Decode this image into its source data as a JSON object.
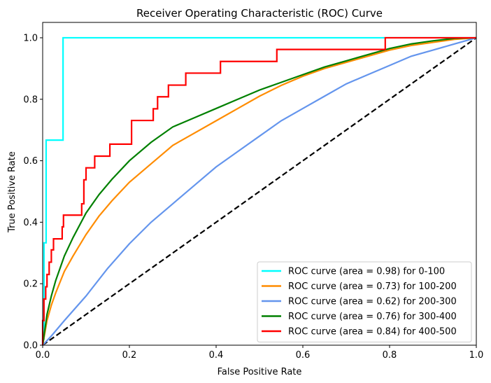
{
  "chart_data": {
    "type": "line",
    "title": "Receiver Operating Characteristic (ROC) Curve",
    "xlabel": "False Positive Rate",
    "ylabel": "True Positive Rate",
    "xlim": [
      0.0,
      1.0
    ],
    "ylim": [
      0.0,
      1.05
    ],
    "xticks": [
      "0.0",
      "0.2",
      "0.4",
      "0.6",
      "0.8",
      "1.0"
    ],
    "yticks": [
      "0.0",
      "0.2",
      "0.4",
      "0.6",
      "0.8",
      "1.0"
    ],
    "grid": false,
    "legend_position": "lower-right",
    "diagonal": {
      "x": [
        0,
        1
      ],
      "y": [
        0,
        1
      ],
      "color": "#000000",
      "style": "dashed"
    },
    "series": [
      {
        "name": "ROC curve (area = 0.98) for 0-100",
        "color": "#00ffff",
        "step": true,
        "x": [
          0.0,
          0.0,
          0.003,
          0.003,
          0.008,
          0.008,
          0.047,
          0.047,
          0.79,
          1.0
        ],
        "y": [
          0.0,
          0.02,
          0.02,
          0.333,
          0.333,
          0.667,
          0.667,
          1.0,
          1.0,
          1.0
        ]
      },
      {
        "name": "ROC curve (area = 0.73) for 100-200",
        "color": "#ff8c00",
        "step": false,
        "x": [
          0.0,
          0.01,
          0.02,
          0.03,
          0.05,
          0.07,
          0.1,
          0.13,
          0.16,
          0.2,
          0.25,
          0.3,
          0.35,
          0.4,
          0.45,
          0.5,
          0.55,
          0.6,
          0.65,
          0.7,
          0.75,
          0.8,
          0.85,
          0.9,
          0.95,
          1.0
        ],
        "y": [
          0.0,
          0.08,
          0.13,
          0.17,
          0.24,
          0.29,
          0.36,
          0.42,
          0.47,
          0.53,
          0.59,
          0.65,
          0.69,
          0.73,
          0.77,
          0.81,
          0.845,
          0.875,
          0.9,
          0.92,
          0.94,
          0.96,
          0.975,
          0.985,
          0.995,
          1.0
        ]
      },
      {
        "name": "ROC curve (area = 0.62) for 200-300",
        "color": "#6495ed",
        "step": false,
        "x": [
          0.0,
          0.02,
          0.05,
          0.1,
          0.15,
          0.2,
          0.25,
          0.3,
          0.35,
          0.4,
          0.45,
          0.5,
          0.55,
          0.6,
          0.65,
          0.7,
          0.75,
          0.8,
          0.85,
          0.9,
          0.95,
          1.0
        ],
        "y": [
          0.0,
          0.03,
          0.08,
          0.16,
          0.25,
          0.33,
          0.4,
          0.46,
          0.52,
          0.58,
          0.63,
          0.68,
          0.73,
          0.77,
          0.81,
          0.85,
          0.88,
          0.91,
          0.94,
          0.96,
          0.98,
          1.0
        ]
      },
      {
        "name": "ROC curve (area = 0.76) for 300-400",
        "color": "#008000",
        "step": false,
        "x": [
          0.0,
          0.01,
          0.02,
          0.03,
          0.05,
          0.07,
          0.1,
          0.13,
          0.16,
          0.2,
          0.25,
          0.3,
          0.35,
          0.4,
          0.45,
          0.5,
          0.55,
          0.6,
          0.65,
          0.7,
          0.75,
          0.8,
          0.85,
          0.9,
          0.95,
          1.0
        ],
        "y": [
          0.0,
          0.1,
          0.16,
          0.21,
          0.29,
          0.35,
          0.43,
          0.49,
          0.54,
          0.6,
          0.66,
          0.71,
          0.74,
          0.77,
          0.8,
          0.83,
          0.855,
          0.88,
          0.905,
          0.925,
          0.945,
          0.965,
          0.98,
          0.99,
          0.998,
          1.0
        ]
      },
      {
        "name": "ROC curve (area = 0.84) for 400-500",
        "color": "#ff0000",
        "step": true,
        "x": [
          0.0,
          0.0,
          0.003,
          0.003,
          0.007,
          0.007,
          0.01,
          0.01,
          0.015,
          0.015,
          0.02,
          0.02,
          0.025,
          0.025,
          0.045,
          0.045,
          0.048,
          0.048,
          0.09,
          0.09,
          0.095,
          0.095,
          0.1,
          0.1,
          0.12,
          0.12,
          0.155,
          0.155,
          0.205,
          0.205,
          0.255,
          0.255,
          0.265,
          0.265,
          0.29,
          0.29,
          0.33,
          0.33,
          0.41,
          0.41,
          0.54,
          0.54,
          0.79,
          0.79,
          1.0
        ],
        "y": [
          0.0,
          0.08,
          0.08,
          0.15,
          0.15,
          0.19,
          0.19,
          0.23,
          0.23,
          0.27,
          0.27,
          0.31,
          0.31,
          0.346,
          0.346,
          0.385,
          0.385,
          0.423,
          0.423,
          0.46,
          0.46,
          0.538,
          0.538,
          0.577,
          0.577,
          0.615,
          0.615,
          0.654,
          0.654,
          0.731,
          0.731,
          0.769,
          0.769,
          0.808,
          0.808,
          0.846,
          0.846,
          0.885,
          0.885,
          0.923,
          0.923,
          0.962,
          0.962,
          1.0,
          1.0
        ]
      }
    ]
  }
}
